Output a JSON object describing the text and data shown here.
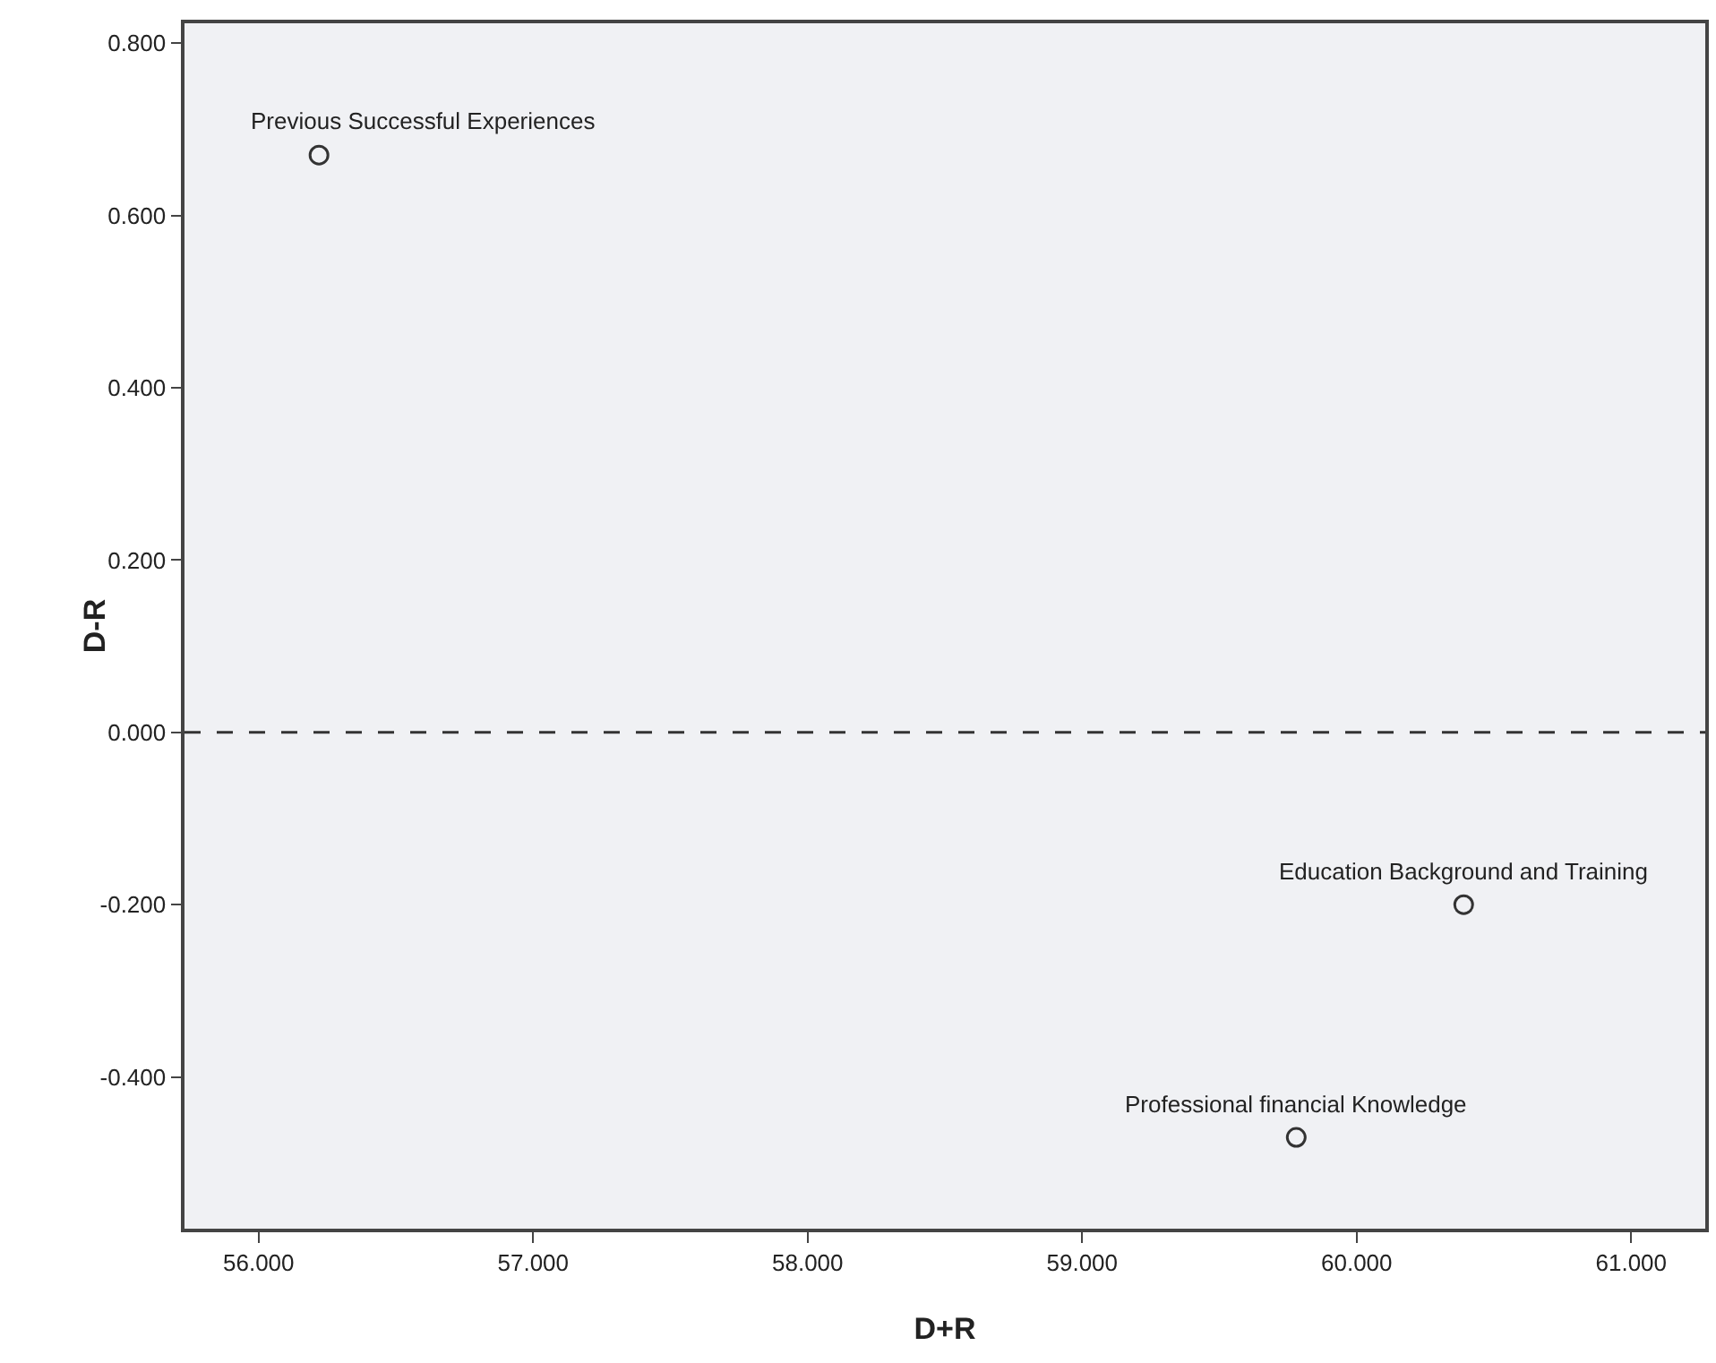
{
  "chart_data": {
    "type": "scatter",
    "xlabel": "D+R",
    "ylabel": "D-R",
    "series": [
      {
        "color": "#333333",
        "x": [
          56.22,
          60.39,
          59.78
        ],
        "values": [
          0.67,
          -0.2,
          -0.47
        ]
      }
    ],
    "marker": "circle",
    "grid": false,
    "xlim": [
      55.73,
      61.27
    ],
    "xticks": [
      {
        "value": 56,
        "label": "56.000"
      },
      {
        "value": 57,
        "label": "57.000"
      },
      {
        "value": 58,
        "label": "58.000"
      },
      {
        "value": 59,
        "label": "59.000"
      },
      {
        "value": 60,
        "label": "60.000"
      },
      {
        "value": 61,
        "label": "61.000"
      }
    ],
    "ylim": [
      -0.576,
      0.823
    ],
    "yticks": [
      {
        "value": -0.4,
        "label": "-0.400"
      },
      {
        "value": -0.2,
        "label": "-0.200"
      },
      {
        "value": 0,
        "label": "0.000"
      },
      {
        "value": 0.2,
        "label": "0.200"
      },
      {
        "value": 0.4,
        "label": "0.400"
      },
      {
        "value": 0.6,
        "label": "0.600"
      },
      {
        "value": 0.8,
        "label": "0.800"
      }
    ],
    "ref_lines": [
      {
        "axis": "y",
        "value": 0,
        "line_style": "dashed",
        "color": "#333333"
      }
    ],
    "annotations": [
      {
        "text": "Previous Successful Experiences",
        "x": 56.22,
        "y": 0.67
      },
      {
        "text": "Education Background and Training",
        "x": 60.39,
        "y": -0.2
      },
      {
        "text": "Professional financial Knowledge",
        "x": 59.78,
        "y": -0.47
      }
    ]
  }
}
